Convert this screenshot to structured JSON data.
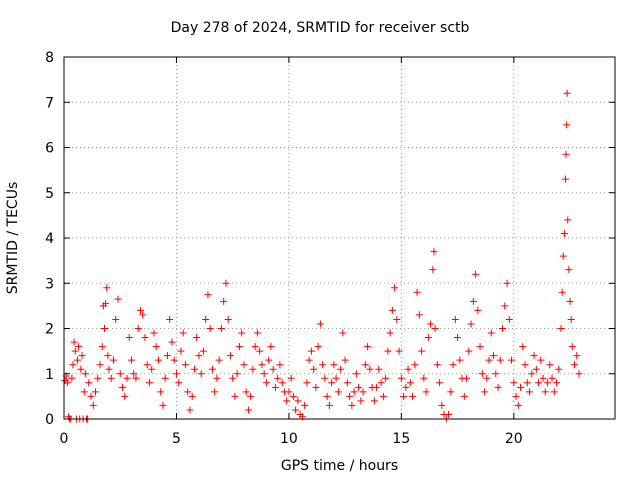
{
  "chart_data": {
    "type": "scatter",
    "title": "Day 278 of 2024, SRMTID for receiver sctb",
    "xlabel": "GPS time / hours",
    "ylabel": "SRMTID / TECUs",
    "xlim": [
      0,
      24.5
    ],
    "ylim": [
      0,
      8
    ],
    "xticks": [
      0,
      5,
      10,
      15,
      20
    ],
    "yticks": [
      0,
      1,
      2,
      3,
      4,
      5,
      6,
      7,
      8
    ],
    "grid": true,
    "marker": "+",
    "color": "#ff0000",
    "series": [
      {
        "name": "SRMTID",
        "points": [
          [
            0.05,
            0.85
          ],
          [
            0.1,
            0.95
          ],
          [
            0.15,
            0.8
          ],
          [
            0.2,
            0.05
          ],
          [
            0.25,
            0.0
          ],
          [
            0.3,
            0.0
          ],
          [
            0.35,
            0.9
          ],
          [
            0.4,
            1.2
          ],
          [
            0.45,
            1.7
          ],
          [
            0.5,
            1.5
          ],
          [
            0.55,
            0.0
          ],
          [
            0.6,
            1.3
          ],
          [
            0.65,
            1.6
          ],
          [
            0.7,
            0.0
          ],
          [
            0.75,
            1.1
          ],
          [
            0.8,
            1.4
          ],
          [
            0.85,
            0.0
          ],
          [
            0.9,
            0.6
          ],
          [
            0.95,
            1.0
          ],
          [
            1.0,
            0.0
          ],
          [
            1.05,
            0.0
          ],
          [
            1.1,
            0.8
          ],
          [
            1.2,
            0.5
          ],
          [
            1.3,
            0.3
          ],
          [
            1.4,
            0.6
          ],
          [
            1.5,
            0.9
          ],
          [
            1.6,
            1.2
          ],
          [
            1.7,
            1.6
          ],
          [
            1.75,
            2.5
          ],
          [
            1.8,
            2.0
          ],
          [
            1.85,
            2.55
          ],
          [
            1.9,
            2.9
          ],
          [
            1.95,
            1.4
          ],
          [
            2.0,
            1.1
          ],
          [
            2.1,
            0.9
          ],
          [
            2.2,
            1.3
          ],
          [
            2.3,
            2.2
          ],
          [
            2.4,
            2.65
          ],
          [
            2.5,
            1.0
          ],
          [
            2.6,
            0.7
          ],
          [
            2.7,
            0.5
          ],
          [
            2.8,
            0.9
          ],
          [
            2.9,
            1.8
          ],
          [
            3.0,
            1.3
          ],
          [
            3.1,
            1.0
          ],
          [
            3.2,
            0.9
          ],
          [
            3.3,
            2.0
          ],
          [
            3.4,
            2.4
          ],
          [
            3.5,
            2.3
          ],
          [
            3.6,
            1.8
          ],
          [
            3.7,
            1.2
          ],
          [
            3.8,
            0.8
          ],
          [
            3.9,
            1.1
          ],
          [
            4.0,
            1.9
          ],
          [
            4.1,
            1.6
          ],
          [
            4.2,
            1.3
          ],
          [
            4.3,
            0.6
          ],
          [
            4.4,
            0.3
          ],
          [
            4.5,
            0.9
          ],
          [
            4.6,
            1.4
          ],
          [
            4.7,
            2.2
          ],
          [
            4.8,
            1.7
          ],
          [
            4.9,
            1.3
          ],
          [
            5.0,
            1.0
          ],
          [
            5.1,
            0.8
          ],
          [
            5.2,
            1.5
          ],
          [
            5.3,
            1.9
          ],
          [
            5.4,
            1.2
          ],
          [
            5.5,
            0.6
          ],
          [
            5.6,
            0.2
          ],
          [
            5.7,
            0.5
          ],
          [
            5.8,
            1.1
          ],
          [
            5.9,
            1.8
          ],
          [
            6.0,
            1.4
          ],
          [
            6.1,
            1.0
          ],
          [
            6.2,
            1.5
          ],
          [
            6.3,
            2.2
          ],
          [
            6.4,
            2.75
          ],
          [
            6.5,
            2.0
          ],
          [
            6.6,
            1.1
          ],
          [
            6.7,
            0.6
          ],
          [
            6.8,
            0.9
          ],
          [
            6.9,
            1.3
          ],
          [
            7.0,
            2.0
          ],
          [
            7.1,
            2.6
          ],
          [
            7.2,
            3.0
          ],
          [
            7.3,
            2.2
          ],
          [
            7.4,
            1.4
          ],
          [
            7.5,
            0.9
          ],
          [
            7.6,
            0.5
          ],
          [
            7.7,
            1.0
          ],
          [
            7.8,
            1.6
          ],
          [
            7.9,
            1.9
          ],
          [
            8.0,
            1.2
          ],
          [
            8.1,
            0.6
          ],
          [
            8.2,
            0.2
          ],
          [
            8.3,
            0.5
          ],
          [
            8.4,
            1.1
          ],
          [
            8.5,
            1.6
          ],
          [
            8.6,
            1.9
          ],
          [
            8.7,
            1.5
          ],
          [
            8.8,
            1.2
          ],
          [
            8.9,
            1.0
          ],
          [
            9.0,
            0.8
          ],
          [
            9.1,
            1.3
          ],
          [
            9.2,
            1.6
          ],
          [
            9.3,
            1.1
          ],
          [
            9.4,
            0.7
          ],
          [
            9.5,
            0.9
          ],
          [
            9.6,
            1.2
          ],
          [
            9.7,
            0.8
          ],
          [
            9.8,
            0.6
          ],
          [
            9.9,
            0.4
          ],
          [
            10.0,
            0.6
          ],
          [
            10.1,
            0.9
          ],
          [
            10.2,
            0.5
          ],
          [
            10.3,
            0.2
          ],
          [
            10.4,
            0.4
          ],
          [
            10.5,
            0.1
          ],
          [
            10.6,
            0.05
          ],
          [
            10.7,
            0.3
          ],
          [
            10.8,
            0.8
          ],
          [
            10.9,
            1.3
          ],
          [
            11.0,
            1.5
          ],
          [
            11.1,
            1.1
          ],
          [
            11.2,
            0.7
          ],
          [
            11.3,
            1.6
          ],
          [
            11.4,
            2.1
          ],
          [
            11.5,
            1.2
          ],
          [
            11.6,
            0.9
          ],
          [
            11.7,
            0.5
          ],
          [
            11.8,
            0.3
          ],
          [
            11.9,
            0.8
          ],
          [
            12.0,
            1.2
          ],
          [
            12.1,
            0.9
          ],
          [
            12.2,
            0.6
          ],
          [
            12.3,
            1.1
          ],
          [
            12.4,
            1.9
          ],
          [
            12.5,
            1.3
          ],
          [
            12.6,
            0.8
          ],
          [
            12.7,
            0.5
          ],
          [
            12.8,
            0.3
          ],
          [
            12.9,
            0.6
          ],
          [
            13.0,
            1.0
          ],
          [
            13.1,
            0.7
          ],
          [
            13.2,
            0.4
          ],
          [
            13.3,
            0.6
          ],
          [
            13.4,
            1.2
          ],
          [
            13.5,
            1.6
          ],
          [
            13.6,
            1.1
          ],
          [
            13.7,
            0.7
          ],
          [
            13.8,
            0.4
          ],
          [
            13.9,
            0.7
          ],
          [
            14.0,
            1.1
          ],
          [
            14.1,
            0.8
          ],
          [
            14.2,
            0.5
          ],
          [
            14.3,
            0.9
          ],
          [
            14.4,
            1.5
          ],
          [
            14.5,
            1.9
          ],
          [
            14.6,
            2.4
          ],
          [
            14.7,
            2.9
          ],
          [
            14.8,
            2.2
          ],
          [
            14.9,
            1.5
          ],
          [
            15.0,
            0.9
          ],
          [
            15.1,
            0.5
          ],
          [
            15.2,
            0.7
          ],
          [
            15.3,
            1.1
          ],
          [
            15.4,
            0.8
          ],
          [
            15.5,
            0.5
          ],
          [
            15.6,
            1.2
          ],
          [
            15.7,
            2.8
          ],
          [
            15.8,
            2.3
          ],
          [
            15.9,
            1.5
          ],
          [
            16.0,
            0.9
          ],
          [
            16.1,
            0.6
          ],
          [
            16.2,
            1.8
          ],
          [
            16.3,
            2.1
          ],
          [
            16.4,
            3.3
          ],
          [
            16.45,
            3.7
          ],
          [
            16.5,
            2.0
          ],
          [
            16.6,
            1.2
          ],
          [
            16.7,
            0.8
          ],
          [
            16.8,
            0.3
          ],
          [
            16.9,
            0.1
          ],
          [
            17.0,
            0.0
          ],
          [
            17.1,
            0.1
          ],
          [
            17.2,
            0.6
          ],
          [
            17.3,
            1.2
          ],
          [
            17.4,
            2.2
          ],
          [
            17.5,
            1.8
          ],
          [
            17.6,
            1.3
          ],
          [
            17.7,
            0.9
          ],
          [
            17.8,
            0.5
          ],
          [
            17.9,
            0.9
          ],
          [
            18.0,
            1.5
          ],
          [
            18.1,
            2.1
          ],
          [
            18.2,
            2.6
          ],
          [
            18.3,
            3.2
          ],
          [
            18.4,
            2.4
          ],
          [
            18.5,
            1.6
          ],
          [
            18.6,
            1.0
          ],
          [
            18.7,
            0.6
          ],
          [
            18.8,
            0.9
          ],
          [
            18.9,
            1.3
          ],
          [
            19.0,
            1.9
          ],
          [
            19.1,
            1.4
          ],
          [
            19.2,
            1.0
          ],
          [
            19.3,
            0.7
          ],
          [
            19.4,
            1.3
          ],
          [
            19.5,
            2.0
          ],
          [
            19.6,
            2.5
          ],
          [
            19.7,
            3.0
          ],
          [
            19.8,
            2.2
          ],
          [
            19.9,
            1.3
          ],
          [
            20.0,
            0.8
          ],
          [
            20.1,
            0.5
          ],
          [
            20.2,
            0.3
          ],
          [
            20.3,
            0.7
          ],
          [
            20.4,
            1.6
          ],
          [
            20.5,
            1.2
          ],
          [
            20.6,
            0.8
          ],
          [
            20.7,
            0.6
          ],
          [
            20.8,
            1.0
          ],
          [
            20.9,
            1.4
          ],
          [
            21.0,
            1.1
          ],
          [
            21.1,
            0.8
          ],
          [
            21.2,
            1.3
          ],
          [
            21.3,
            0.9
          ],
          [
            21.4,
            0.6
          ],
          [
            21.5,
            0.8
          ],
          [
            21.6,
            1.2
          ],
          [
            21.7,
            0.9
          ],
          [
            21.8,
            0.6
          ],
          [
            21.9,
            0.8
          ],
          [
            22.0,
            1.1
          ],
          [
            22.1,
            2.0
          ],
          [
            22.15,
            2.8
          ],
          [
            22.2,
            3.6
          ],
          [
            22.25,
            4.1
          ],
          [
            22.3,
            5.3
          ],
          [
            22.32,
            5.85
          ],
          [
            22.35,
            6.5
          ],
          [
            22.37,
            7.2
          ],
          [
            22.4,
            4.4
          ],
          [
            22.45,
            3.3
          ],
          [
            22.5,
            2.6
          ],
          [
            22.55,
            2.2
          ],
          [
            22.6,
            1.6
          ],
          [
            22.7,
            1.2
          ],
          [
            22.8,
            1.4
          ],
          [
            22.9,
            1.0
          ]
        ]
      }
    ]
  }
}
